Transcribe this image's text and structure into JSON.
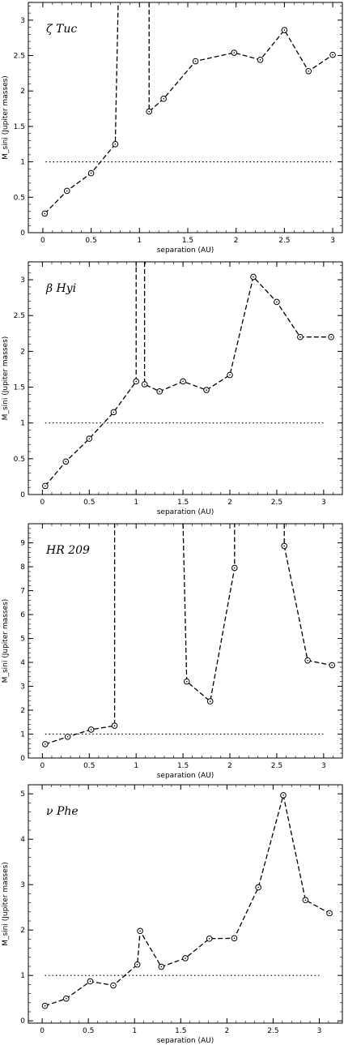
{
  "chart_data": [
    {
      "type": "line",
      "title": "ζ Tuc",
      "xlabel": "separation (AU)",
      "ylabel": "M_sini (Jupiter masses)",
      "xlim": [
        -0.15,
        3.1
      ],
      "ylim": [
        0,
        3.25
      ],
      "xticks": [
        0,
        0.5,
        1,
        1.5,
        2,
        2.5,
        3
      ],
      "xticklabels": [
        "0",
        "0.5",
        "1",
        "1.5",
        "2",
        "2.5",
        "3"
      ],
      "yticks": [
        0,
        0.5,
        1,
        1.5,
        2,
        2.5,
        3
      ],
      "yticklabels": [
        "0",
        "0.5",
        "1",
        "1.5",
        "2",
        "2.5",
        "3"
      ],
      "reference_line": 1,
      "segments": [
        [
          [
            0.02,
            0.27
          ],
          [
            0.25,
            0.59
          ],
          [
            0.5,
            0.84
          ],
          [
            0.75,
            1.25
          ],
          [
            0.78,
            3.25
          ]
        ],
        [
          [
            1.1,
            3.25
          ],
          [
            1.1,
            1.71
          ],
          [
            1.25,
            1.89
          ],
          [
            1.58,
            2.42
          ],
          [
            1.98,
            2.54
          ],
          [
            2.25,
            2.44
          ],
          [
            2.5,
            2.86
          ],
          [
            2.75,
            2.28
          ],
          [
            3.0,
            2.51
          ]
        ]
      ],
      "markers": [
        [
          0.02,
          0.27
        ],
        [
          0.25,
          0.59
        ],
        [
          0.5,
          0.84
        ],
        [
          0.75,
          1.25
        ],
        [
          1.1,
          1.71
        ],
        [
          1.25,
          1.89
        ],
        [
          1.58,
          2.42
        ],
        [
          1.98,
          2.54
        ],
        [
          2.25,
          2.44
        ],
        [
          2.5,
          2.86
        ],
        [
          2.75,
          2.28
        ],
        [
          3.0,
          2.51
        ]
      ]
    },
    {
      "type": "line",
      "title": "β Hyi",
      "xlabel": "separation (AU)",
      "ylabel": "M_sini (Jupiter masses)",
      "xlim": [
        -0.15,
        3.2
      ],
      "ylim": [
        0,
        3.25
      ],
      "xticks": [
        0,
        0.5,
        1,
        1.5,
        2,
        2.5,
        3
      ],
      "xticklabels": [
        "0",
        "0.5",
        "1",
        "1.5",
        "2",
        "2.5",
        "3"
      ],
      "yticks": [
        0,
        0.5,
        1,
        1.5,
        2,
        2.5,
        3
      ],
      "yticklabels": [
        "0",
        "0.5",
        "1",
        "1.5",
        "2",
        "2.5",
        "3"
      ],
      "reference_line": 1,
      "segments": [
        [
          [
            0.03,
            0.12
          ],
          [
            0.25,
            0.46
          ],
          [
            0.5,
            0.78
          ],
          [
            0.76,
            1.15
          ],
          [
            1.0,
            1.58
          ],
          [
            1.0,
            3.25
          ]
        ],
        [
          [
            1.09,
            3.25
          ],
          [
            1.09,
            1.54
          ],
          [
            1.25,
            1.44
          ],
          [
            1.5,
            1.58
          ],
          [
            1.75,
            1.46
          ],
          [
            2.0,
            1.67
          ],
          [
            2.25,
            3.04
          ],
          [
            2.5,
            2.69
          ],
          [
            2.75,
            2.2
          ],
          [
            3.08,
            2.2
          ]
        ]
      ],
      "markers": [
        [
          0.03,
          0.12
        ],
        [
          0.25,
          0.46
        ],
        [
          0.5,
          0.78
        ],
        [
          0.76,
          1.15
        ],
        [
          1.0,
          1.58
        ],
        [
          1.09,
          1.54
        ],
        [
          1.25,
          1.44
        ],
        [
          1.5,
          1.58
        ],
        [
          1.75,
          1.46
        ],
        [
          2.0,
          1.67
        ],
        [
          2.25,
          3.04
        ],
        [
          2.5,
          2.69
        ],
        [
          2.75,
          2.2
        ],
        [
          3.08,
          2.2
        ]
      ]
    },
    {
      "type": "line",
      "title": "HR 209",
      "xlabel": "separation (AU)",
      "ylabel": "M_sini (Jupiter masses)",
      "xlim": [
        -0.15,
        3.2
      ],
      "ylim": [
        0,
        9.8
      ],
      "xticks": [
        0,
        0.5,
        1,
        1.5,
        2,
        2.5,
        3
      ],
      "xticklabels": [
        "0",
        "0.5",
        "1",
        "1.5",
        "2",
        "2.5",
        "3"
      ],
      "yticks": [
        0,
        1,
        2,
        3,
        4,
        5,
        6,
        7,
        8,
        9
      ],
      "yticklabels": [
        "0",
        "1",
        "2",
        "3",
        "4",
        "5",
        "6",
        "7",
        "8",
        "9"
      ],
      "reference_line": 1,
      "segments": [
        [
          [
            0.03,
            0.58
          ],
          [
            0.27,
            0.89
          ],
          [
            0.52,
            1.19
          ],
          [
            0.77,
            1.35
          ],
          [
            0.77,
            9.8
          ]
        ],
        [
          [
            1.5,
            9.8
          ],
          [
            1.54,
            3.2
          ],
          [
            1.79,
            2.37
          ],
          [
            2.05,
            7.95
          ],
          [
            2.05,
            9.8
          ]
        ],
        [
          [
            2.58,
            9.8
          ],
          [
            2.58,
            8.87
          ],
          [
            2.83,
            4.08
          ],
          [
            3.09,
            3.88
          ]
        ]
      ],
      "markers": [
        [
          0.03,
          0.58
        ],
        [
          0.27,
          0.89
        ],
        [
          0.52,
          1.19
        ],
        [
          0.77,
          1.35
        ],
        [
          1.54,
          3.2
        ],
        [
          1.79,
          2.37
        ],
        [
          2.05,
          7.95
        ],
        [
          2.58,
          8.87
        ],
        [
          2.83,
          4.08
        ],
        [
          3.09,
          3.88
        ]
      ]
    },
    {
      "type": "line",
      "title": "ν Phe",
      "xlabel": "separation (AU)",
      "ylabel": "M_sini (Jupiter masses)",
      "xlim": [
        -0.15,
        3.25
      ],
      "ylim": [
        -0.05,
        5.2
      ],
      "xticks": [
        0,
        0.5,
        1,
        1.5,
        2,
        2.5,
        3
      ],
      "xticklabels": [
        "0",
        "0.5",
        "1",
        "1.5",
        "2",
        "2.5",
        "3"
      ],
      "yticks": [
        0,
        1,
        2,
        3,
        4,
        5
      ],
      "yticklabels": [
        "0",
        "1",
        "2",
        "3",
        "4",
        "5"
      ],
      "reference_line": 1,
      "segments": [
        [
          [
            0.03,
            0.33
          ],
          [
            0.26,
            0.49
          ],
          [
            0.52,
            0.87
          ],
          [
            0.77,
            0.78
          ],
          [
            1.03,
            1.24
          ],
          [
            1.06,
            1.98
          ],
          [
            1.29,
            1.19
          ],
          [
            1.55,
            1.38
          ],
          [
            1.81,
            1.81
          ],
          [
            2.08,
            1.82
          ],
          [
            2.34,
            2.94
          ],
          [
            2.61,
            4.97
          ],
          [
            2.85,
            2.66
          ],
          [
            3.11,
            2.37
          ]
        ]
      ],
      "markers": [
        [
          0.03,
          0.33
        ],
        [
          0.26,
          0.49
        ],
        [
          0.52,
          0.87
        ],
        [
          0.77,
          0.78
        ],
        [
          1.03,
          1.24
        ],
        [
          1.06,
          1.98
        ],
        [
          1.29,
          1.19
        ],
        [
          1.55,
          1.38
        ],
        [
          1.81,
          1.81
        ],
        [
          2.08,
          1.82
        ],
        [
          2.34,
          2.94
        ],
        [
          2.61,
          4.97
        ],
        [
          2.85,
          2.66
        ],
        [
          3.11,
          2.37
        ]
      ]
    }
  ]
}
